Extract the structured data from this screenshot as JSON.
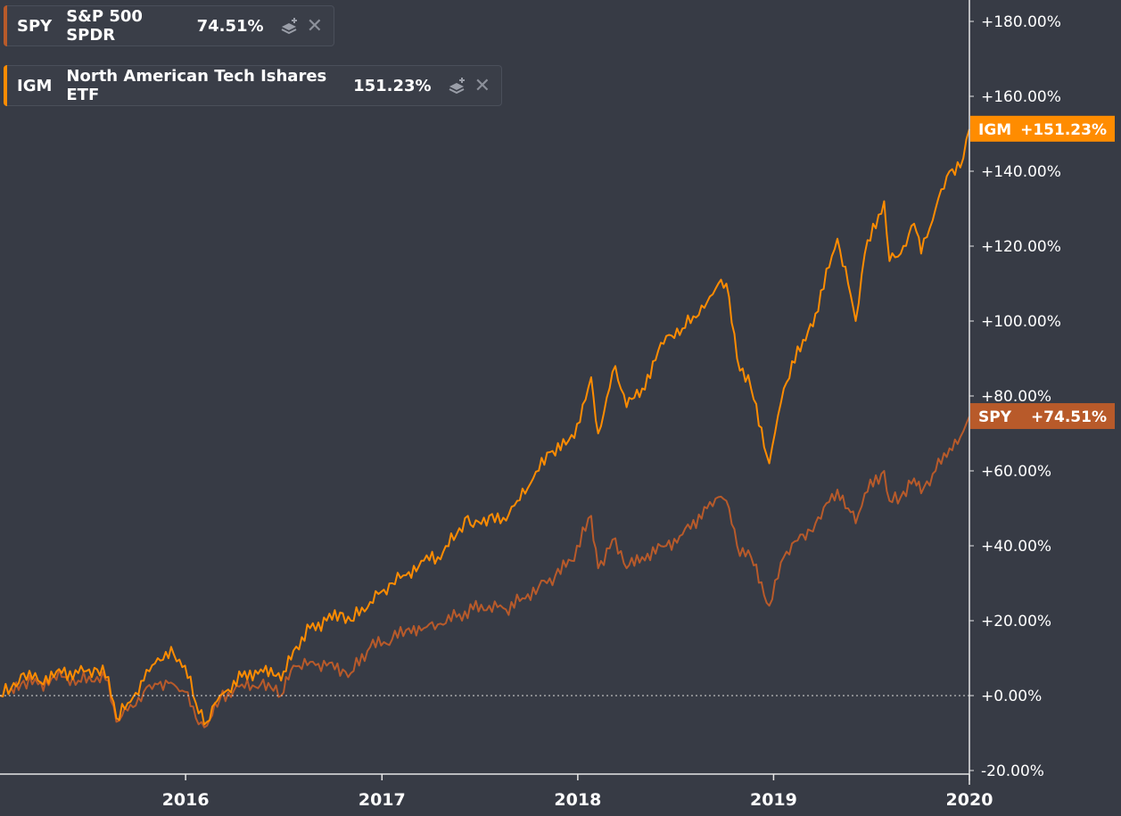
{
  "legend": [
    {
      "symbol": "SPY",
      "name": "S&P 500 SPDR",
      "percent": "74.51%",
      "color": "#b85a2a",
      "icons": [
        "layers-plus-icon",
        "close-icon"
      ]
    },
    {
      "symbol": "IGM",
      "name": "North American Tech Ishares ETF",
      "percent": "151.23%",
      "color": "#ff8c00",
      "icons": [
        "layers-plus-icon",
        "close-icon"
      ]
    }
  ],
  "last_value_tags": [
    {
      "symbol": "IGM",
      "value": "+151.23%",
      "color": "#ff8c00"
    },
    {
      "symbol": "SPY",
      "value": "+74.51%",
      "color": "#b85a2a"
    }
  ],
  "close_glyph": "✕",
  "chart_data": {
    "type": "line",
    "title": "",
    "xlabel": "",
    "ylabel": "",
    "x_tick_labels": [
      "2016",
      "2017",
      "2018",
      "2019",
      "2020"
    ],
    "y_tick_labels": [
      "-20.00%",
      "+0.00%",
      "+20.00%",
      "+40.00%",
      "+60.00%",
      "+80.00%",
      "+100.00%",
      "+120.00%",
      "+140.00%",
      "+160.00%",
      "+180.00%"
    ],
    "y_ticks": [
      -20,
      0,
      20,
      40,
      60,
      80,
      100,
      120,
      140,
      160,
      180
    ],
    "ylim": [
      -20,
      180
    ],
    "xlim": [
      "2015-01-20",
      "2020-01-01"
    ],
    "zero_line": "dotted",
    "grid": false,
    "series": [
      {
        "name": "IGM",
        "color": "#ff8c00",
        "points": [
          [
            "2015-01-20",
            0
          ],
          [
            "2015-02-10",
            2
          ],
          [
            "2015-03-05",
            6
          ],
          [
            "2015-04-01",
            4
          ],
          [
            "2015-05-15",
            6
          ],
          [
            "2015-06-15",
            6
          ],
          [
            "2015-07-20",
            7
          ],
          [
            "2015-08-10",
            5
          ],
          [
            "2015-08-25",
            -6
          ],
          [
            "2015-09-15",
            -2
          ],
          [
            "2015-10-15",
            4
          ],
          [
            "2015-11-10",
            10
          ],
          [
            "2015-12-10",
            11
          ],
          [
            "2015-12-31",
            8
          ],
          [
            "2016-01-20",
            -2
          ],
          [
            "2016-02-10",
            -7
          ],
          [
            "2016-03-05",
            0
          ],
          [
            "2016-04-15",
            5
          ],
          [
            "2016-05-20",
            7
          ],
          [
            "2016-06-27",
            4
          ],
          [
            "2016-07-20",
            12
          ],
          [
            "2016-08-20",
            18
          ],
          [
            "2016-09-20",
            20
          ],
          [
            "2016-10-20",
            22
          ],
          [
            "2016-11-04",
            20
          ],
          [
            "2016-12-10",
            25
          ],
          [
            "2017-01-20",
            30
          ],
          [
            "2017-02-20",
            33
          ],
          [
            "2017-03-20",
            36
          ],
          [
            "2017-04-15",
            37
          ],
          [
            "2017-05-20",
            43
          ],
          [
            "2017-06-10",
            48
          ],
          [
            "2017-06-20",
            45
          ],
          [
            "2017-07-20",
            48
          ],
          [
            "2017-08-10",
            46
          ],
          [
            "2017-09-10",
            52
          ],
          [
            "2017-10-10",
            58
          ],
          [
            "2017-11-10",
            65
          ],
          [
            "2017-12-10",
            67
          ],
          [
            "2018-01-05",
            73
          ],
          [
            "2018-01-26",
            85
          ],
          [
            "2018-02-08",
            70
          ],
          [
            "2018-03-12",
            88
          ],
          [
            "2018-04-02",
            77
          ],
          [
            "2018-05-01",
            82
          ],
          [
            "2018-06-15",
            96
          ],
          [
            "2018-07-15",
            98
          ],
          [
            "2018-08-30",
            105
          ],
          [
            "2018-09-20",
            110
          ],
          [
            "2018-10-05",
            110
          ],
          [
            "2018-10-25",
            90
          ],
          [
            "2018-11-20",
            82
          ],
          [
            "2018-12-24",
            62
          ],
          [
            "2019-01-20",
            82
          ],
          [
            "2019-02-25",
            95
          ],
          [
            "2019-03-20",
            102
          ],
          [
            "2019-04-30",
            122
          ],
          [
            "2019-05-20",
            110
          ],
          [
            "2019-06-03",
            100
          ],
          [
            "2019-06-20",
            118
          ],
          [
            "2019-07-26",
            132
          ],
          [
            "2019-08-05",
            116
          ],
          [
            "2019-08-26",
            118
          ],
          [
            "2019-09-20",
            126
          ],
          [
            "2019-10-03",
            118
          ],
          [
            "2019-10-30",
            130
          ],
          [
            "2019-11-25",
            140
          ],
          [
            "2019-12-15",
            141
          ],
          [
            "2020-01-01",
            151.23
          ]
        ]
      },
      {
        "name": "SPY",
        "color": "#b85a2a",
        "points": [
          [
            "2015-01-20",
            0
          ],
          [
            "2015-02-10",
            2
          ],
          [
            "2015-03-05",
            4
          ],
          [
            "2015-04-01",
            3
          ],
          [
            "2015-05-15",
            5
          ],
          [
            "2015-06-15",
            4
          ],
          [
            "2015-07-20",
            5
          ],
          [
            "2015-08-10",
            4
          ],
          [
            "2015-08-25",
            -7
          ],
          [
            "2015-09-15",
            -4
          ],
          [
            "2015-10-15",
            1
          ],
          [
            "2015-11-10",
            3
          ],
          [
            "2015-12-10",
            3
          ],
          [
            "2015-12-31",
            1
          ],
          [
            "2016-01-20",
            -6
          ],
          [
            "2016-02-10",
            -8
          ],
          [
            "2016-03-05",
            -1
          ],
          [
            "2016-04-15",
            3
          ],
          [
            "2016-05-20",
            3
          ],
          [
            "2016-06-27",
            0
          ],
          [
            "2016-07-20",
            8
          ],
          [
            "2016-08-20",
            9
          ],
          [
            "2016-09-20",
            8
          ],
          [
            "2016-10-20",
            7
          ],
          [
            "2016-11-04",
            6
          ],
          [
            "2016-12-10",
            13
          ],
          [
            "2017-01-20",
            15
          ],
          [
            "2017-02-20",
            18
          ],
          [
            "2017-03-20",
            18
          ],
          [
            "2017-04-15",
            19
          ],
          [
            "2017-05-20",
            21
          ],
          [
            "2017-06-20",
            23
          ],
          [
            "2017-07-20",
            24
          ],
          [
            "2017-08-20",
            23
          ],
          [
            "2017-09-20",
            26
          ],
          [
            "2017-10-20",
            29
          ],
          [
            "2017-11-20",
            32
          ],
          [
            "2017-12-20",
            36
          ],
          [
            "2018-01-26",
            48
          ],
          [
            "2018-02-08",
            34
          ],
          [
            "2018-03-12",
            42
          ],
          [
            "2018-04-02",
            34
          ],
          [
            "2018-05-01",
            37
          ],
          [
            "2018-06-15",
            40
          ],
          [
            "2018-07-15",
            43
          ],
          [
            "2018-08-30",
            50
          ],
          [
            "2018-09-20",
            53
          ],
          [
            "2018-10-05",
            52
          ],
          [
            "2018-10-25",
            40
          ],
          [
            "2018-11-20",
            37
          ],
          [
            "2018-12-24",
            24
          ],
          [
            "2019-01-20",
            37
          ],
          [
            "2019-02-25",
            43
          ],
          [
            "2019-03-20",
            46
          ],
          [
            "2019-04-30",
            55
          ],
          [
            "2019-05-20",
            50
          ],
          [
            "2019-06-03",
            46
          ],
          [
            "2019-06-20",
            54
          ],
          [
            "2019-07-26",
            60
          ],
          [
            "2019-08-05",
            52
          ],
          [
            "2019-08-26",
            53
          ],
          [
            "2019-09-20",
            58
          ],
          [
            "2019-10-03",
            54
          ],
          [
            "2019-10-30",
            60
          ],
          [
            "2019-11-25",
            66
          ],
          [
            "2019-12-15",
            69
          ],
          [
            "2020-01-01",
            74.51
          ]
        ]
      }
    ]
  }
}
